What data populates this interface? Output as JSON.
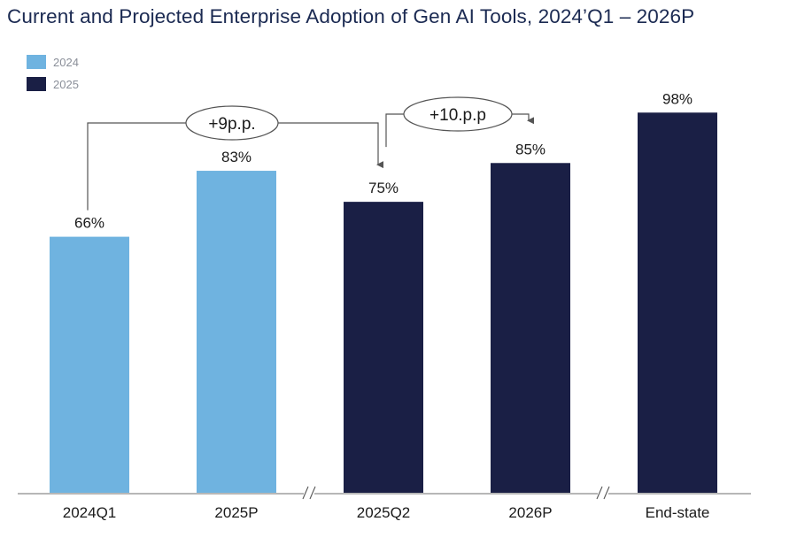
{
  "chart_data": {
    "type": "bar",
    "title": "Current and Projected Enterprise Adoption of Gen AI Tools, 2024’Q1 – 2026P",
    "categories": [
      "2024Q1",
      "2025P",
      "2025Q2",
      "2026P",
      "End-state"
    ],
    "values": [
      66,
      83,
      75,
      85,
      98
    ],
    "value_labels": [
      "66%",
      "83%",
      "75%",
      "85%",
      "98%"
    ],
    "value_unit": "%",
    "bar_series": [
      "2024",
      "2024",
      "2025",
      "2025",
      "2025"
    ],
    "legend": [
      {
        "name": "2024",
        "color": "#6fb3e0"
      },
      {
        "name": "2025",
        "color": "#1a1f45"
      }
    ],
    "legend_position": "top-left",
    "axis_breaks_after": [
      "2025P",
      "2026P"
    ],
    "annotations": [
      {
        "label": "+9p.p.",
        "from": "2024Q1",
        "to": "2025Q2"
      },
      {
        "label": "+10.p.p",
        "from": "2025Q2",
        "to": "2026P"
      }
    ],
    "ylim": [
      0,
      100
    ],
    "y_axis_visible": false,
    "grid": false,
    "xlabel": "",
    "ylabel": ""
  }
}
